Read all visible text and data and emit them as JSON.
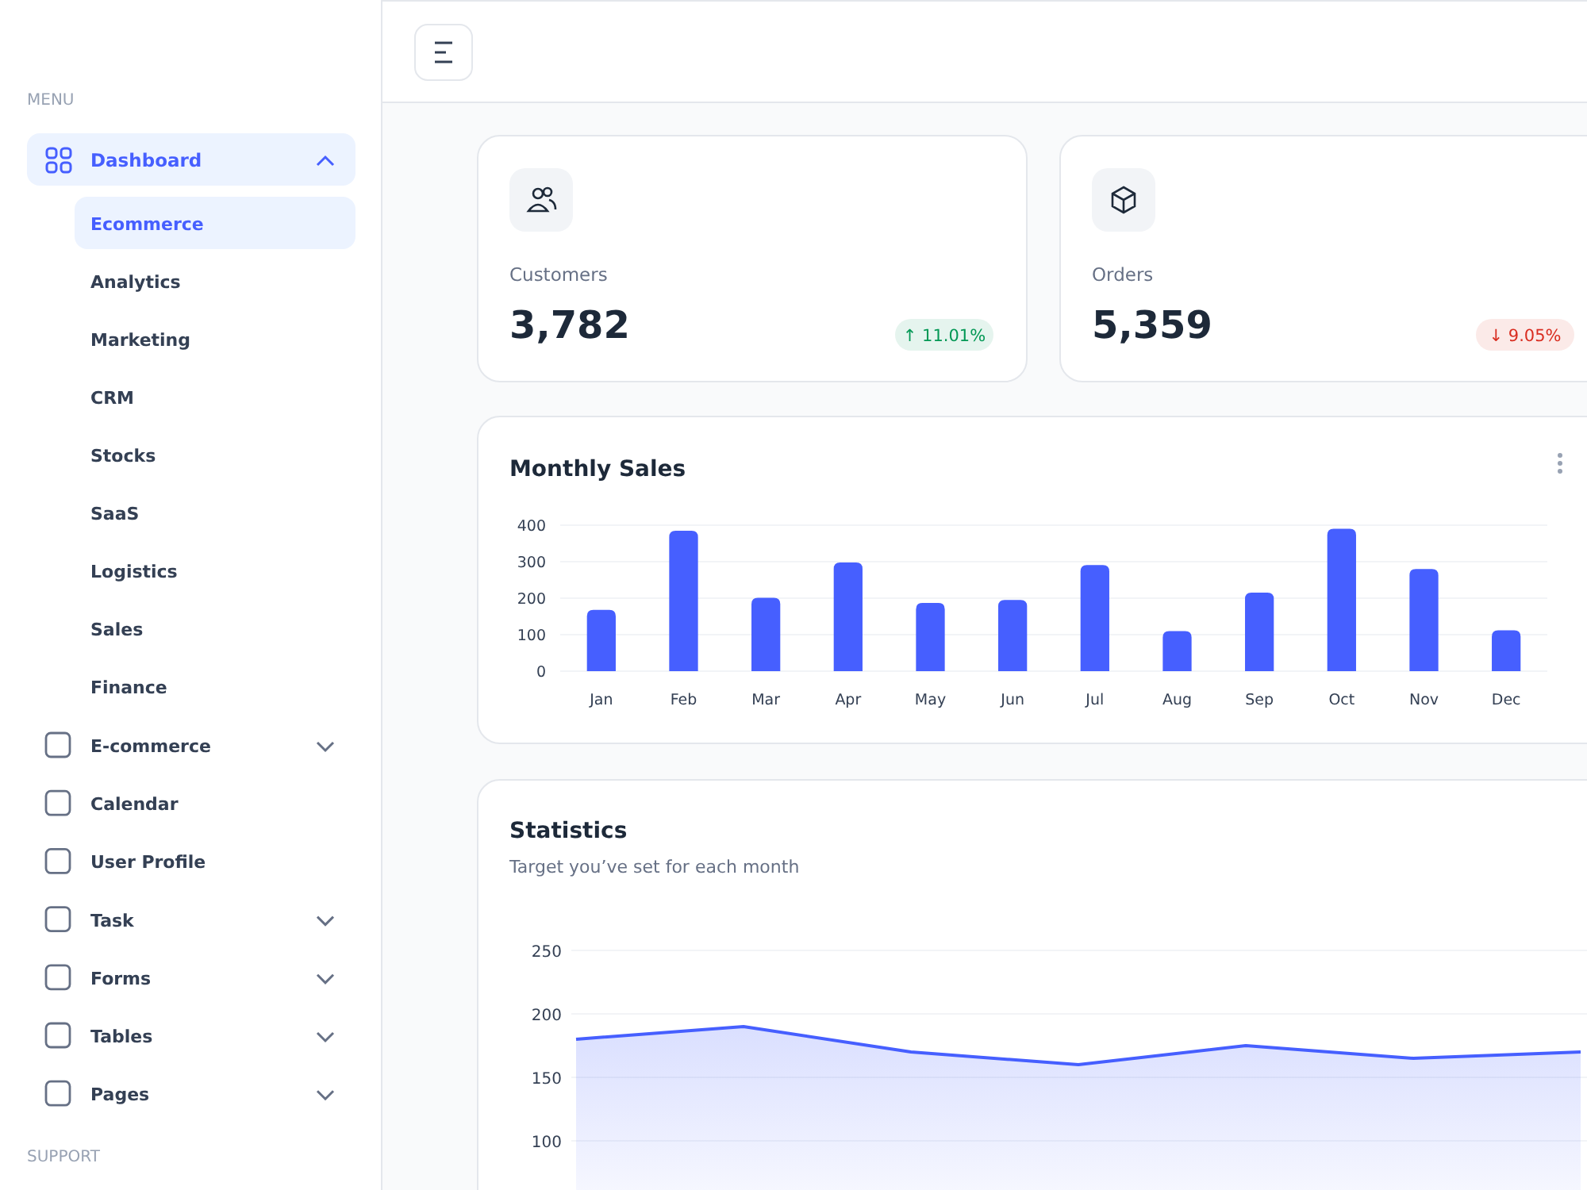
{
  "chart_data": [
    {
      "type": "other",
      "title": "MENU",
      "subtitle": "SUPPORT",
      "annotations": [
        "Dashboard",
        "Ecommerce",
        "Analytics",
        "Marketing",
        "CRM",
        "Stocks",
        "SaaS",
        "Logistics",
        "Sales",
        "Finance",
        "E-commerce",
        "Calendar",
        "User Profile",
        "Task",
        "Forms",
        "Tables",
        "Pages"
      ]
    },
    {
      "type": "other",
      "title": "Customers",
      "annotations": [
        "3,782",
        "↑ 11.01%"
      ],
      "color": "#039855"
    },
    {
      "type": "other",
      "title": "Orders",
      "annotations": [
        "5,359",
        "↓ 9.05%"
      ],
      "color": "#d92d20"
    },
    {
      "type": "bar",
      "title": "Monthly Sales",
      "categories": [
        "Jan",
        "Feb",
        "Mar",
        "Apr",
        "May",
        "Jun",
        "Jul",
        "Aug",
        "Sep",
        "Oct",
        "Nov",
        "Dec"
      ],
      "values": [
        168,
        385,
        201,
        298,
        187,
        195,
        291,
        110,
        215,
        390,
        280,
        112
      ],
      "color": "#465fff",
      "ylim": [
        0,
        400
      ],
      "yticks": [
        0,
        100,
        200,
        300,
        400
      ],
      "grid": "y"
    },
    {
      "type": "area",
      "title": "Statistics",
      "subtitle": "Target you’ve set for each month",
      "categories": [
        null,
        null,
        null,
        null,
        null,
        null,
        null
      ],
      "series": [
        {
          "color": "#465fff",
          "values": [
            180,
            190,
            170,
            160,
            175,
            165,
            170
          ]
        }
      ],
      "ylim": [
        60,
        250
      ],
      "yticks": [
        100,
        150,
        200,
        250
      ],
      "grid": "y",
      "tick_labels": "y"
    }
  ]
}
